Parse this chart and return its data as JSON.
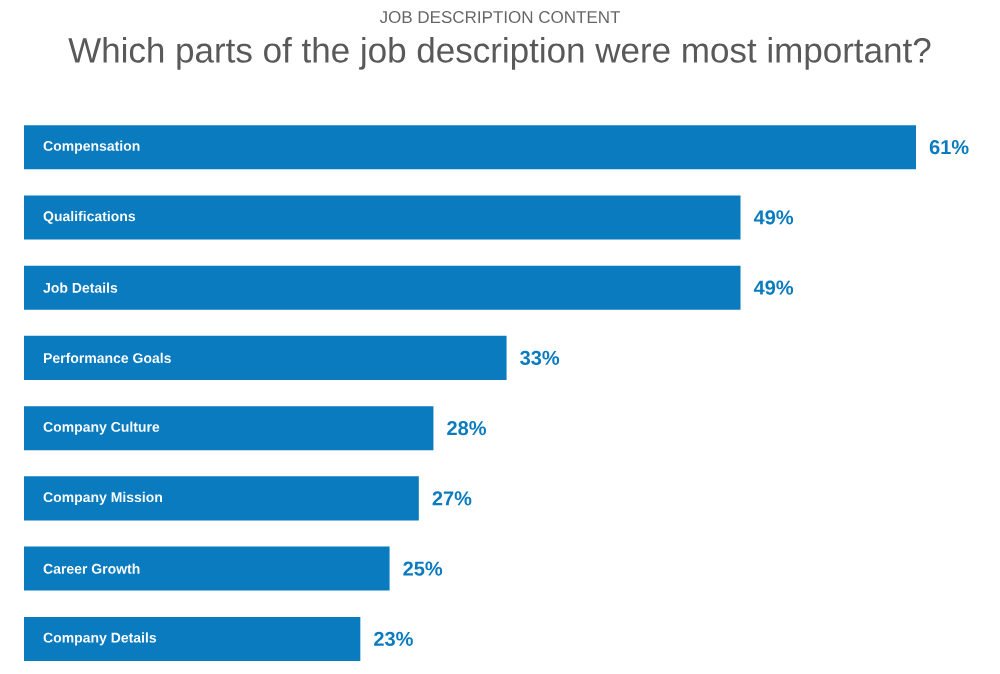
{
  "chart_data": {
    "type": "bar",
    "orientation": "horizontal",
    "title": "JOB DESCRIPTION CONTENT",
    "subtitle": "Which parts of the job description were most important?",
    "categories": [
      "Compensation",
      "Qualifications",
      "Job Details",
      "Performance Goals",
      "Company Culture",
      "Company Mission",
      "Career Growth",
      "Company Details"
    ],
    "values": [
      61,
      49,
      49,
      33,
      28,
      27,
      25,
      23
    ],
    "value_labels": [
      "61%",
      "49%",
      "49%",
      "33%",
      "28%",
      "27%",
      "25%",
      "23%"
    ],
    "color": "#0a7bbf"
  }
}
